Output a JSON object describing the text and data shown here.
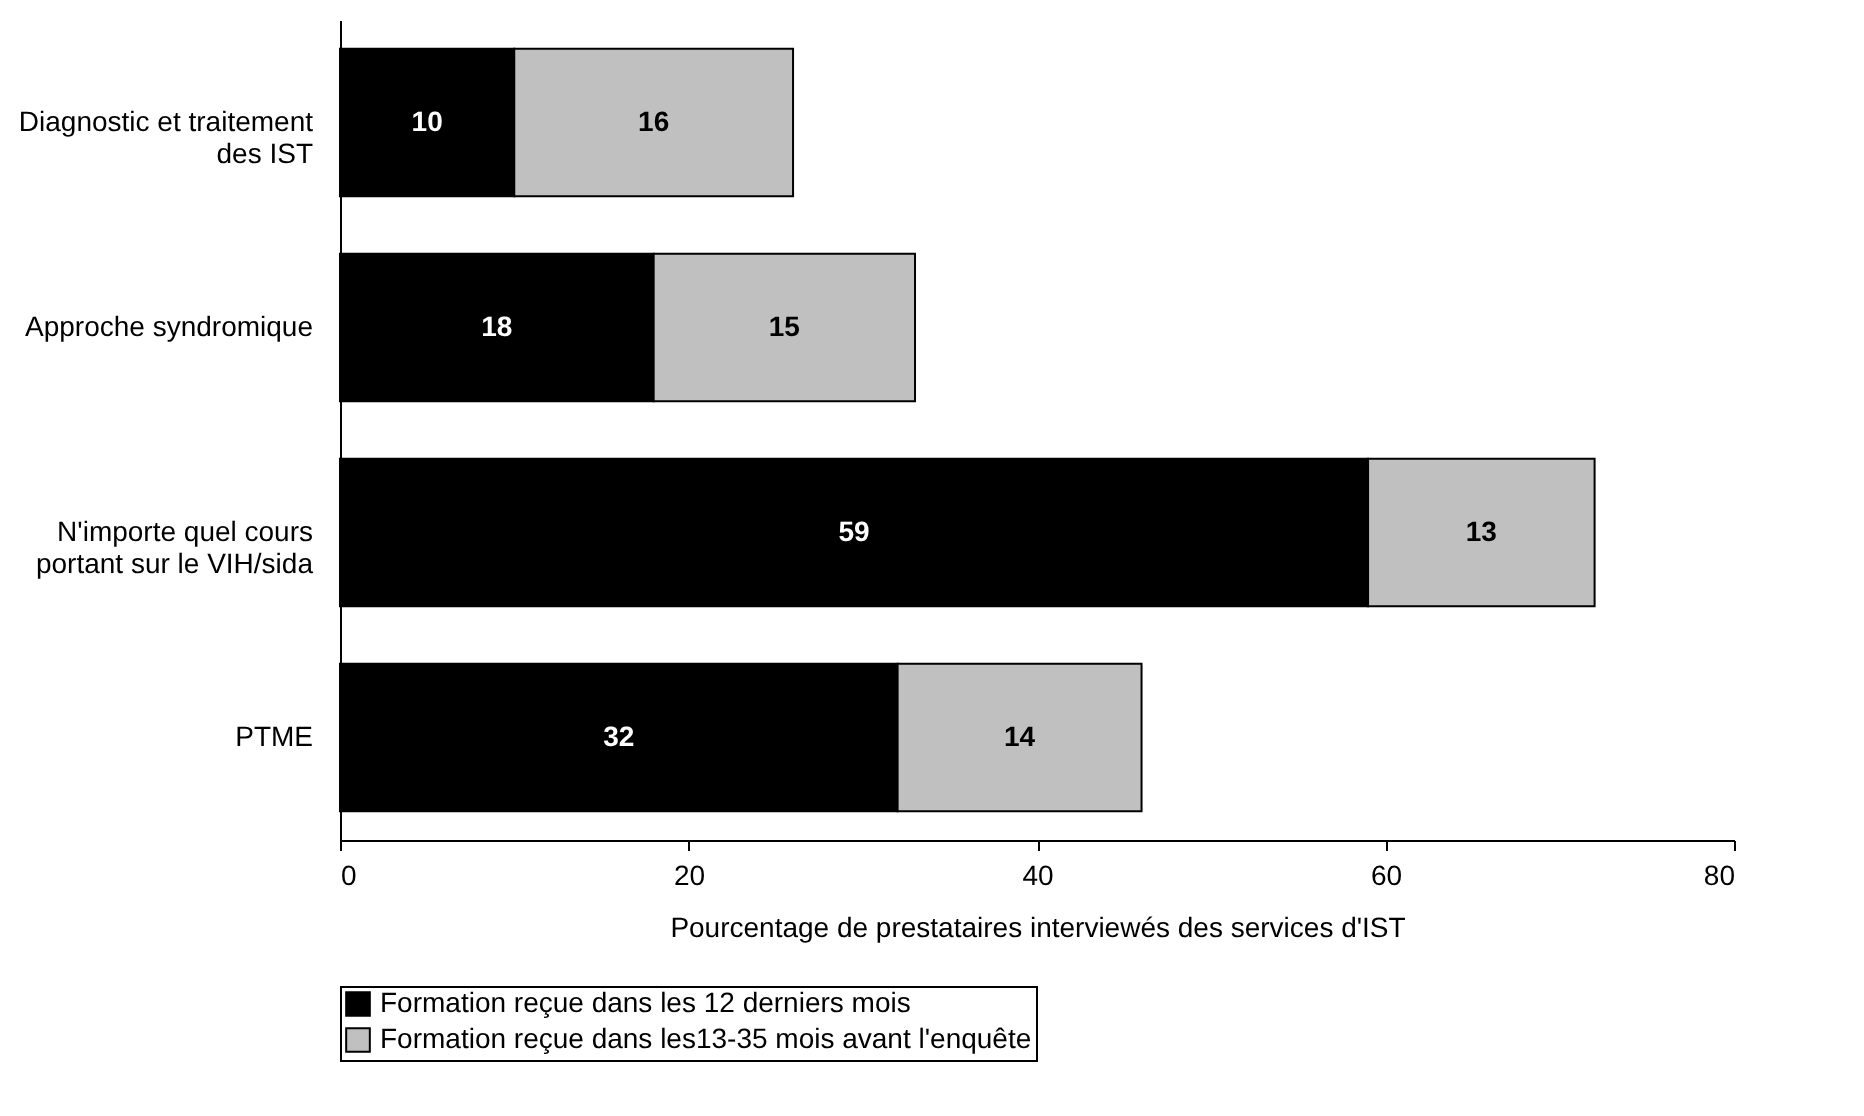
{
  "chart_data": {
    "type": "bar",
    "orientation": "horizontal",
    "stacked": true,
    "data_labels": true,
    "xlabel": "Pourcentage de prestataires interviewés des services d'IST",
    "categories": [
      "Diagnostic et traitement des IST",
      "Approche syndromique",
      "N'importe quel cours portant sur le VIH/sida",
      "PTME"
    ],
    "series": [
      {
        "name": "Formation reçue dans les 12 derniers mois",
        "color": "#000000",
        "values": [
          10,
          18,
          59,
          32
        ]
      },
      {
        "name": "Formation reçue dans les13-35 mois avant l'enquête",
        "color": "#c0c0c0",
        "values": [
          16,
          15,
          13,
          14
        ]
      }
    ],
    "xlim": [
      0,
      80
    ],
    "xticks": [
      0,
      20,
      40,
      60,
      80
    ],
    "grid": false,
    "legend": "bottom"
  }
}
